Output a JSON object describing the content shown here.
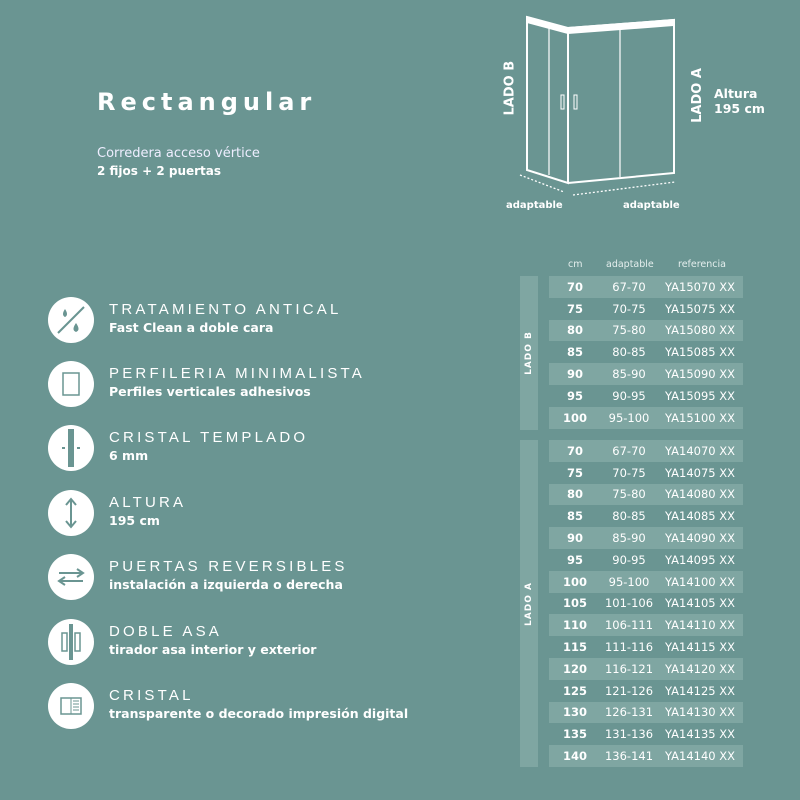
{
  "header": {
    "title": "Rectangular",
    "subtitle": "Corredera acceso vértice",
    "config": "2 fijos + 2 puertas"
  },
  "diagram": {
    "lado_b": "LADO B",
    "lado_a": "LADO A",
    "altura_label": "Altura",
    "altura_value": "195 cm",
    "adaptable_left": "adaptable",
    "adaptable_right": "adaptable"
  },
  "features": [
    {
      "icon": "anti-limescale-icon",
      "title": "TRATAMIENTO ANTICAL",
      "desc": "Fast Clean a doble cara"
    },
    {
      "icon": "profile-icon",
      "title": "PERFILERIA MINIMALISTA",
      "desc": "Perfiles verticales adhesivos"
    },
    {
      "icon": "tempered-glass-icon",
      "title": "CRISTAL TEMPLADO",
      "desc": "6 mm"
    },
    {
      "icon": "height-arrows-icon",
      "title": "ALTURA",
      "desc": "195 cm"
    },
    {
      "icon": "reversible-arrows-icon",
      "title": "PUERTAS REVERSIBLES",
      "desc": "instalación a izquierda o derecha"
    },
    {
      "icon": "double-handle-icon",
      "title": "DOBLE ASA",
      "desc": "tirador asa interior y exterior"
    },
    {
      "icon": "glass-panel-icon",
      "title": "CRISTAL",
      "desc": "transparente o decorado impresión digital"
    }
  ],
  "table": {
    "headers": [
      "cm",
      "adaptable",
      "referencia"
    ],
    "lado_b": {
      "label": "LADO B",
      "rows": [
        [
          "70",
          "67-70",
          "YA15070 XX"
        ],
        [
          "75",
          "70-75",
          "YA15075 XX"
        ],
        [
          "80",
          "75-80",
          "YA15080 XX"
        ],
        [
          "85",
          "80-85",
          "YA15085 XX"
        ],
        [
          "90",
          "85-90",
          "YA15090 XX"
        ],
        [
          "95",
          "90-95",
          "YA15095 XX"
        ],
        [
          "100",
          "95-100",
          "YA15100 XX"
        ]
      ]
    },
    "lado_a": {
      "label": "LADO A",
      "rows": [
        [
          "70",
          "67-70",
          "YA14070 XX"
        ],
        [
          "75",
          "70-75",
          "YA14075 XX"
        ],
        [
          "80",
          "75-80",
          "YA14080 XX"
        ],
        [
          "85",
          "80-85",
          "YA14085 XX"
        ],
        [
          "90",
          "85-90",
          "YA14090 XX"
        ],
        [
          "95",
          "90-95",
          "YA14095 XX"
        ],
        [
          "100",
          "95-100",
          "YA14100 XX"
        ],
        [
          "105",
          "101-106",
          "YA14105 XX"
        ],
        [
          "110",
          "106-111",
          "YA14110 XX"
        ],
        [
          "115",
          "111-116",
          "YA14115 XX"
        ],
        [
          "120",
          "116-121",
          "YA14120 XX"
        ],
        [
          "125",
          "121-126",
          "YA14125 XX"
        ],
        [
          "130",
          "126-131",
          "YA14130 XX"
        ],
        [
          "135",
          "131-136",
          "YA14135 XX"
        ],
        [
          "140",
          "136-141",
          "YA14140 XX"
        ]
      ]
    }
  },
  "colors": {
    "background": "#6a9592",
    "stripe": "#7fa6a2",
    "text": "#ffffff"
  }
}
